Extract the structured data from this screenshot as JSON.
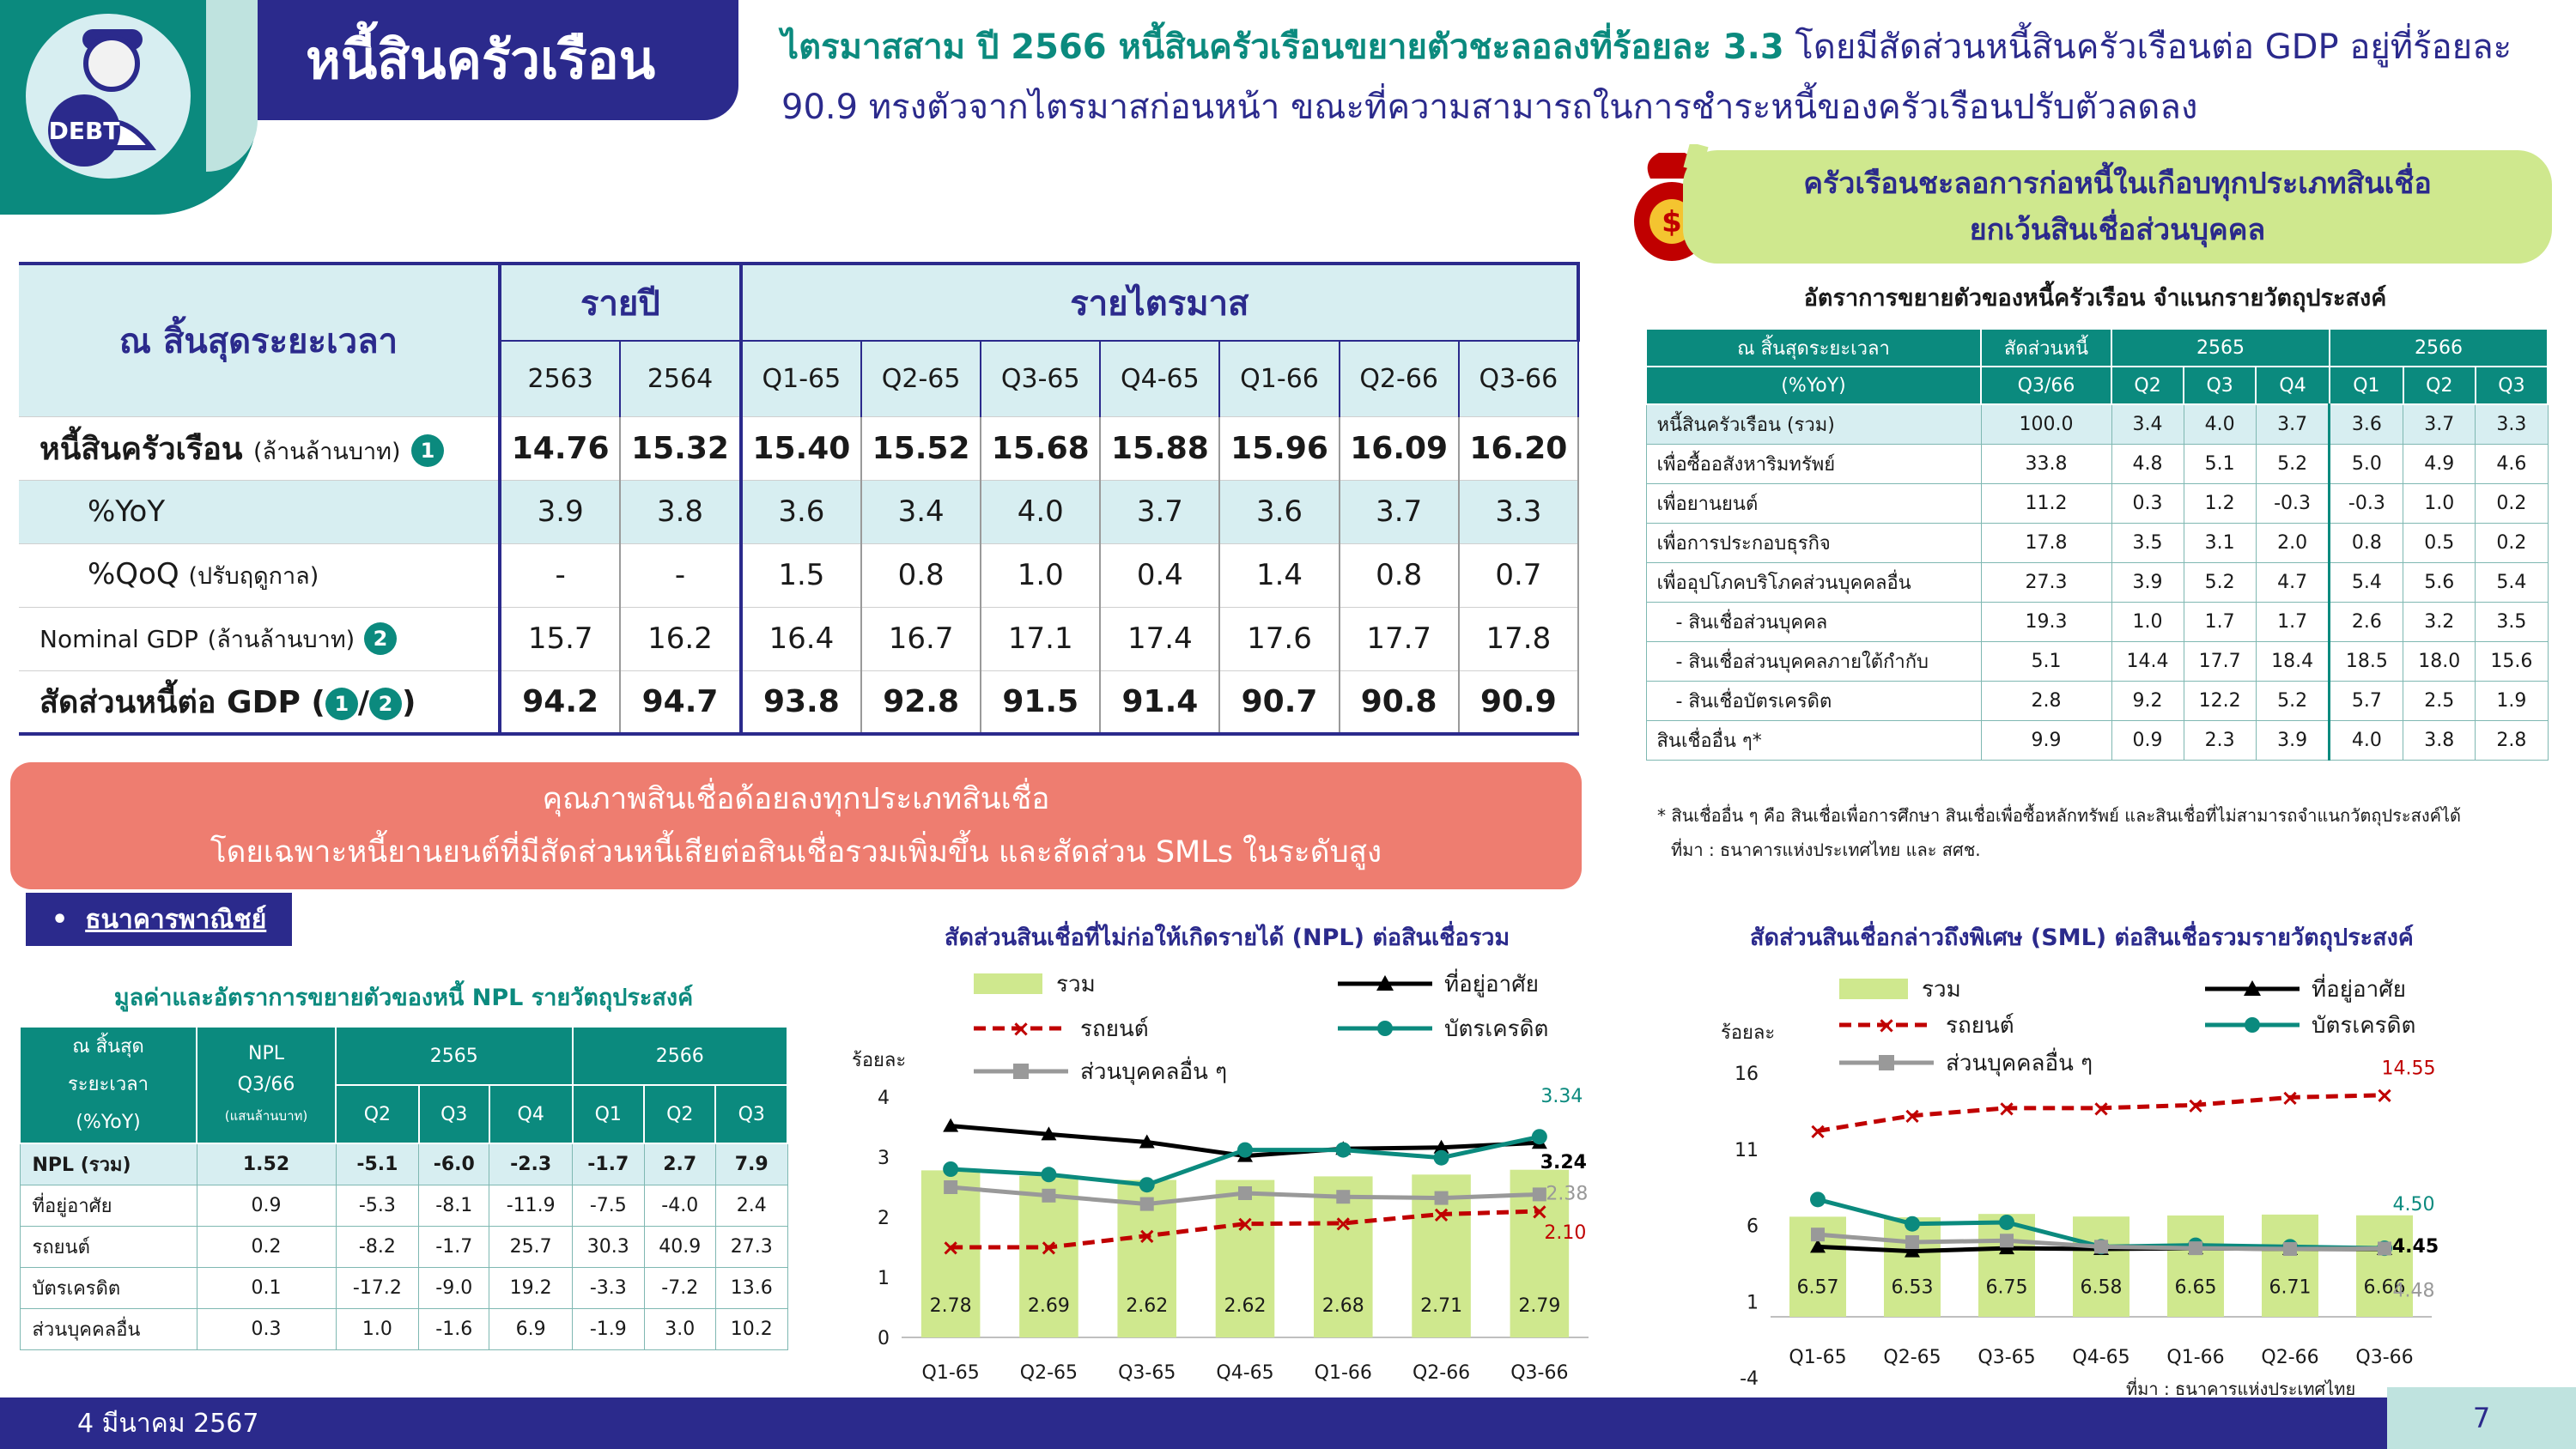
{
  "header": {
    "logo_text": "DEBT",
    "title": "หนี้สินครัวเรือน",
    "headline_lead": "ไตรมาสสาม ปี 2566 หนี้สินครัวเรือนขยายตัวชะลอลงที่ร้อยละ 3.3",
    "headline_rest1": " โดยมีสัดส่วนหนี้สินครัวเรือนต่อ GDP อยู่ที่ร้อยละ",
    "headline_line2": "90.9 ทรงตัวจากไตรมาสก่อนหน้า ขณะที่ความสามารถในการชำระหนี้ของครัวเรือนปรับตัวลดลง",
    "colors": {
      "navy": "#2b2a8c",
      "teal": "#0b8a7e",
      "salmon": "#ee7d70",
      "lime": "#cfe88e"
    }
  },
  "main_table": {
    "corner": "ณ สิ้นสุดระยะเวลา",
    "group_annual": "รายปี",
    "group_quarterly": "รายไตรมาส",
    "periods": [
      "2563",
      "2564",
      "Q1-65",
      "Q2-65",
      "Q3-65",
      "Q4-65",
      "Q1-66",
      "Q2-66",
      "Q3-66"
    ],
    "rows": [
      {
        "label": "หนี้สินครัวเรือน",
        "sub": "(ล้านล้านบาท)",
        "badge": "1",
        "values": [
          "14.76",
          "15.32",
          "15.40",
          "15.52",
          "15.68",
          "15.88",
          "15.96",
          "16.09",
          "16.20"
        ]
      },
      {
        "label": "%YoY",
        "values": [
          "3.9",
          "3.8",
          "3.6",
          "3.4",
          "4.0",
          "3.7",
          "3.6",
          "3.7",
          "3.3"
        ]
      },
      {
        "label": "%QoQ",
        "sub": "(ปรับฤดูกาล)",
        "values": [
          "-",
          "-",
          "1.5",
          "0.8",
          "1.0",
          "0.4",
          "1.4",
          "0.8",
          "0.7"
        ]
      },
      {
        "label": "Nominal GDP",
        "sub": "(ล้านล้านบาท)",
        "badge": "2",
        "values": [
          "15.7",
          "16.2",
          "16.4",
          "16.7",
          "17.1",
          "17.4",
          "17.6",
          "17.7",
          "17.8"
        ]
      },
      {
        "label": "สัดส่วนหนี้ต่อ GDP (",
        "badge_a": "1",
        "slash": "/",
        "badge_b": "2",
        "close": ")",
        "values": [
          "94.2",
          "94.7",
          "93.8",
          "92.8",
          "91.5",
          "91.4",
          "90.7",
          "90.8",
          "90.9"
        ]
      }
    ]
  },
  "green_pill": {
    "line1": "ครัวเรือนชะลอการก่อหนี้ในเกือบทุกประเภทสินเชื่อ",
    "line2": "ยกเว้นสินเชื่อส่วนบุคคล"
  },
  "purpose_table": {
    "title": "อัตราการขยายตัวของหนี้ครัวเรือน จำแนกรายวัตถุประสงค์",
    "corner1": "ณ สิ้นสุดระยะเวลา",
    "corner2": "(%YoY)",
    "share_h1": "สัดส่วนหนี้",
    "share_h2": "Q3/66",
    "year_a": "2565",
    "year_b": "2566",
    "q_a": [
      "Q2",
      "Q3",
      "Q4"
    ],
    "q_b": [
      "Q1",
      "Q2",
      "Q3"
    ],
    "rows": [
      {
        "label": "หนี้สินครัวเรือน (รวม)",
        "share": "100.0",
        "v": [
          "3.4",
          "4.0",
          "3.7",
          "3.6",
          "3.7",
          "3.3"
        ]
      },
      {
        "label": "เพื่อซื้ออสังหาริมทรัพย์",
        "share": "33.8",
        "v": [
          "4.8",
          "5.1",
          "5.2",
          "5.0",
          "4.9",
          "4.6"
        ]
      },
      {
        "label": "เพื่อยานยนต์",
        "share": "11.2",
        "v": [
          "0.3",
          "1.2",
          "-0.3",
          "-0.3",
          "1.0",
          "0.2"
        ]
      },
      {
        "label": "เพื่อการประกอบธุรกิจ",
        "share": "17.8",
        "v": [
          "3.5",
          "3.1",
          "2.0",
          "0.8",
          "0.5",
          "0.2"
        ]
      },
      {
        "label": "เพื่ออุปโภคบริโภคส่วนบุคคลอื่น",
        "share": "27.3",
        "v": [
          "3.9",
          "5.2",
          "4.7",
          "5.4",
          "5.6",
          "5.4"
        ]
      },
      {
        "label": "- สินเชื่อส่วนบุคคล",
        "share": "19.3",
        "v": [
          "1.0",
          "1.7",
          "1.7",
          "2.6",
          "3.2",
          "3.5"
        ]
      },
      {
        "label": "- สินเชื่อส่วนบุคคลภายใต้กำกับ",
        "share": "5.1",
        "v": [
          "14.4",
          "17.7",
          "18.4",
          "18.5",
          "18.0",
          "15.6"
        ]
      },
      {
        "label": "- สินเชื่อบัตรเครดิต",
        "share": "2.8",
        "v": [
          "9.2",
          "12.2",
          "5.2",
          "5.7",
          "2.5",
          "1.9"
        ]
      },
      {
        "label": "สินเชื่ออื่น ๆ*",
        "share": "9.9",
        "v": [
          "0.9",
          "2.3",
          "3.9",
          "4.0",
          "3.8",
          "2.8"
        ]
      }
    ],
    "note1": "* สินเชื่ออื่น ๆ คือ สินเชื่อเพื่อการศึกษา สินเชื่อเพื่อซื้อหลักทรัพย์ และสินเชื่อที่ไม่สามารถจำแนกวัตถุประสงค์ได้",
    "note2": "ที่มา : ธนาคารแห่งประเทศไทย และ สศช."
  },
  "salmon": {
    "line1": "คุณภาพสินเชื่อด้อยลงทุกประเภทสินเชื่อ",
    "line2": "โดยเฉพาะหนี้ยานยนต์ที่มีสัดส่วนหนี้เสียต่อสินเชื่อรวมเพิ่มขึ้น และสัดส่วน SMLs ในระดับสูง"
  },
  "bank_tag": {
    "bullet": "•",
    "label": "ธนาคารพาณิชย์"
  },
  "npl_table": {
    "title": "มูลค่าและอัตราการขยายตัวของหนี้ NPL รายวัตถุประสงค์",
    "corner1": "ณ สิ้นสุด",
    "corner2": "ระยะเวลา",
    "corner3": "(%YoY)",
    "npl_h1": "NPL",
    "npl_h2": "Q3/66",
    "npl_h3": "(แสนล้านบาท)",
    "year_a": "2565",
    "year_b": "2566",
    "q_a": [
      "Q2",
      "Q3",
      "Q4"
    ],
    "q_b": [
      "Q1",
      "Q2",
      "Q3"
    ],
    "rows": [
      {
        "label": "NPL (รวม)",
        "npl": "1.52",
        "v": [
          "-5.1",
          "-6.0",
          "-2.3",
          "-1.7",
          "2.7",
          "7.9"
        ]
      },
      {
        "label": "ที่อยู่อาศัย",
        "npl": "0.9",
        "v": [
          "-5.3",
          "-8.1",
          "-11.9",
          "-7.5",
          "-4.0",
          "2.4"
        ]
      },
      {
        "label": "รถยนต์",
        "npl": "0.2",
        "v": [
          "-8.2",
          "-1.7",
          "25.7",
          "30.3",
          "40.9",
          "27.3"
        ]
      },
      {
        "label": "บัตรเครดิต",
        "npl": "0.1",
        "v": [
          "-17.2",
          "-9.0",
          "19.2",
          "-3.3",
          "-7.2",
          "13.6"
        ]
      },
      {
        "label": "ส่วนบุคคลอื่น",
        "npl": "0.3",
        "v": [
          "1.0",
          "-1.6",
          "6.9",
          "-1.9",
          "3.0",
          "10.2"
        ]
      }
    ]
  },
  "chart_data": [
    {
      "type": "bar",
      "title": "สัดส่วนสินเชื่อที่ไม่ก่อให้เกิดรายได้ (NPL) ต่อสินเชื่อรวม",
      "ylabel": "ร้อยละ",
      "categories": [
        "Q1-65",
        "Q2-65",
        "Q3-65",
        "Q4-65",
        "Q1-66",
        "Q2-66",
        "Q3-66"
      ],
      "ylim": [
        0,
        4
      ],
      "yticks": [
        0,
        1,
        2,
        3,
        4
      ],
      "series": [
        {
          "name": "รวม",
          "kind": "bar",
          "color": "#cfe88e",
          "values": [
            2.78,
            2.69,
            2.62,
            2.62,
            2.68,
            2.71,
            2.79
          ],
          "labels": [
            "2.78",
            "2.69",
            "2.62",
            "2.62",
            "2.68",
            "2.71",
            "2.79"
          ]
        },
        {
          "name": "ที่อยู่อาศัย",
          "kind": "line",
          "color": "#000000",
          "values": [
            3.52,
            3.38,
            3.25,
            3.02,
            3.14,
            3.16,
            3.24
          ],
          "last_label": "3.24"
        },
        {
          "name": "รถยนต์",
          "kind": "dashed",
          "color": "#c00000",
          "values": [
            1.5,
            1.5,
            1.69,
            1.89,
            1.9,
            2.05,
            2.1
          ],
          "last_label": "2.10"
        },
        {
          "name": "บัตรเครดิต",
          "kind": "line",
          "color": "#0b8a7e",
          "values": [
            2.8,
            2.71,
            2.54,
            3.12,
            3.12,
            2.99,
            3.34
          ],
          "last_label": "3.34"
        },
        {
          "name": "ส่วนบุคคลอื่น ๆ",
          "kind": "line",
          "color": "#999999",
          "values": [
            2.5,
            2.36,
            2.22,
            2.4,
            2.34,
            2.32,
            2.38
          ],
          "last_label": "2.38"
        }
      ]
    },
    {
      "type": "bar",
      "title": "สัดส่วนสินเชื่อกล่าวถึงพิเศษ (SML) ต่อสินเชื่อรวมรายวัตถุประสงค์",
      "ylabel": "ร้อยละ",
      "categories": [
        "Q1-65",
        "Q2-65",
        "Q3-65",
        "Q4-65",
        "Q1-66",
        "Q2-66",
        "Q3-66"
      ],
      "ylim": [
        -4,
        16
      ],
      "yticks": [
        -4,
        1,
        6,
        11,
        16
      ],
      "series": [
        {
          "name": "รวม",
          "kind": "bar",
          "color": "#cfe88e",
          "values": [
            6.57,
            6.53,
            6.75,
            6.58,
            6.65,
            6.71,
            6.66
          ],
          "labels": [
            "6.57",
            "6.53",
            "6.75",
            "6.58",
            "6.65",
            "6.71",
            "6.66"
          ]
        },
        {
          "name": "ที่อยู่อาศัย",
          "kind": "line",
          "color": "#000000",
          "values": [
            4.6,
            4.3,
            4.5,
            4.45,
            4.5,
            4.45,
            4.45
          ],
          "last_label": "4.45"
        },
        {
          "name": "รถยนต์",
          "kind": "dashed",
          "color": "#c00000",
          "values": [
            12.2,
            13.2,
            13.7,
            13.7,
            13.9,
            14.4,
            14.55
          ],
          "last_label": "14.55"
        },
        {
          "name": "บัตรเครดิต",
          "kind": "line",
          "color": "#0b8a7e",
          "values": [
            7.7,
            6.1,
            6.2,
            4.6,
            4.7,
            4.6,
            4.5
          ],
          "last_label": "4.50"
        },
        {
          "name": "ส่วนบุคคลอื่น ๆ",
          "kind": "line",
          "color": "#999999",
          "values": [
            5.4,
            4.9,
            5.0,
            4.6,
            4.5,
            4.45,
            4.48
          ],
          "last_label": "4.48"
        }
      ]
    }
  ],
  "sml_source": "ที่มา : ธนาคารแห่งประเทศไทย",
  "footer": {
    "date": "4 มีนาคม 2567",
    "page": "7"
  }
}
